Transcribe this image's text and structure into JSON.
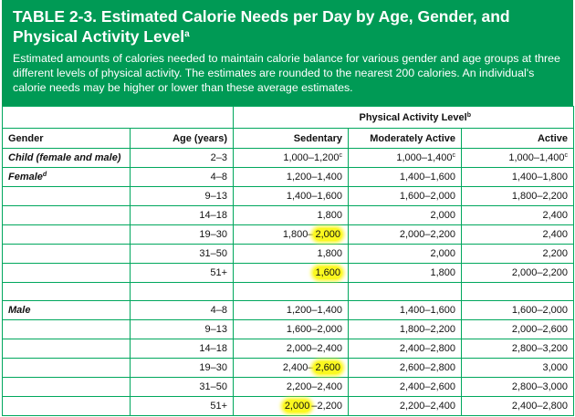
{
  "table": {
    "title": "TABLE 2-3. Estimated Calorie Needs per Day by Age, Gender, and Physical Activity Level",
    "title_sup": "a",
    "description": "Estimated amounts of calories needed to maintain calorie balance for various gender and age groups at three different levels of physical activity. The estimates are rounded to the nearest 200 calories. An individual's calorie needs may be higher or lower than these average estimates.",
    "pal_header": "Physical Activity Level",
    "pal_sup": "b",
    "columns": {
      "gender": "Gender",
      "age": "Age (years)",
      "sedentary": "Sedentary",
      "moderate": "Moderately Active",
      "active": "Active"
    },
    "child": {
      "label": "Child (female and male)",
      "age": "2–3",
      "sedentary": "1,000–1,200",
      "sedentary_sup": "c",
      "moderate": "1,000–1,400",
      "moderate_sup": "c",
      "active": "1,000–1,400",
      "active_sup": "c"
    },
    "female": {
      "label": "Female",
      "label_sup": "d",
      "rows": [
        {
          "age": "4–8",
          "sedentary": "1,200–1,400",
          "moderate": "1,400–1,600",
          "active": "1,400–1,800"
        },
        {
          "age": "9–13",
          "sedentary": "1,400–1,600",
          "moderate": "1,600–2,000",
          "active": "1,800–2,200"
        },
        {
          "age": "14–18",
          "sedentary": "1,800",
          "moderate": "2,000",
          "active": "2,400"
        },
        {
          "age": "19–30",
          "sedentary_a": "1,800–",
          "sedentary_b": "2,000",
          "moderate": "2,000–2,200",
          "active": "2,400"
        },
        {
          "age": "31–50",
          "sedentary": "1,800",
          "moderate": "2,000",
          "active": "2,200"
        },
        {
          "age": "51+",
          "sedentary": "1,600",
          "moderate": "1,800",
          "active": "2,000–2,200"
        }
      ]
    },
    "male": {
      "label": "Male",
      "rows": [
        {
          "age": "4–8",
          "sedentary": "1,200–1,400",
          "moderate": "1,400–1,600",
          "active": "1,600–2,000"
        },
        {
          "age": "9–13",
          "sedentary": "1,600–2,000",
          "moderate": "1,800–2,200",
          "active": "2,000–2,600"
        },
        {
          "age": "14–18",
          "sedentary": "2,000–2,400",
          "moderate": "2,400–2,800",
          "active": "2,800–3,200"
        },
        {
          "age": "19–30",
          "sedentary_a": "2,400–",
          "sedentary_b": "2,600",
          "moderate": "2,600–2,800",
          "active": "3,000"
        },
        {
          "age": "31–50",
          "sedentary": "2,200–2,400",
          "moderate": "2,400–2,600",
          "active": "2,800–3,000"
        },
        {
          "age": "51+",
          "sedentary_a": "2,000",
          "sedentary_b": "–2,200",
          "moderate": "2,200–2,400",
          "active": "2,400–2,800"
        }
      ]
    },
    "colors": {
      "header_green": "#009a55",
      "border_green": "#00a75d",
      "highlight_yellow": "#fbf81f"
    }
  }
}
